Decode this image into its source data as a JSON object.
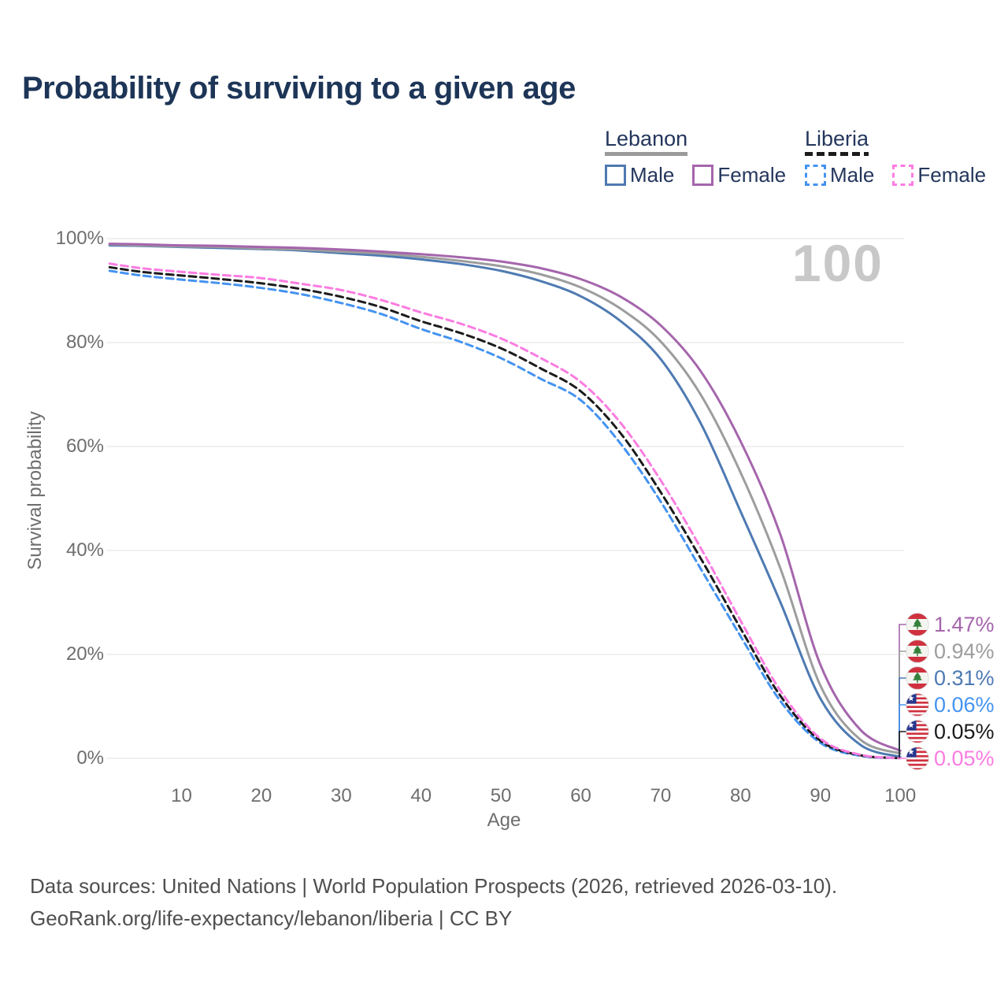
{
  "title": "Probability of surviving to a given age",
  "watermark": "100",
  "legend": {
    "groups": [
      {
        "country": "Lebanon",
        "line_style": "solid",
        "line_color": "#9b9b9b",
        "items": [
          {
            "label": "Male",
            "color": "#4e7ab2",
            "dash": false
          },
          {
            "label": "Female",
            "color": "#a565ac",
            "dash": false
          }
        ]
      },
      {
        "country": "Liberia",
        "line_style": "dashed",
        "line_color": "#1b1b1b",
        "items": [
          {
            "label": "Male",
            "color": "#4493f0",
            "dash": true
          },
          {
            "label": "Female",
            "color": "#fb7ce1",
            "dash": true
          }
        ]
      }
    ]
  },
  "axis": {
    "ylabel": "Survival probability",
    "xlabel": "Age",
    "y_ticks": [
      {
        "label": "100%",
        "value": 100
      },
      {
        "label": "80%",
        "value": 80
      },
      {
        "label": "60%",
        "value": 60
      },
      {
        "label": "40%",
        "value": 40
      },
      {
        "label": "20%",
        "value": 20
      },
      {
        "label": "0%",
        "value": 0
      }
    ],
    "x_ticks": [
      {
        "label": "10",
        "value": 10
      },
      {
        "label": "20",
        "value": 20
      },
      {
        "label": "30",
        "value": 30
      },
      {
        "label": "40",
        "value": 40
      },
      {
        "label": "50",
        "value": 50
      },
      {
        "label": "60",
        "value": 60
      },
      {
        "label": "70",
        "value": 70
      },
      {
        "label": "80",
        "value": 80
      },
      {
        "label": "90",
        "value": 90
      },
      {
        "label": "100",
        "value": 100
      }
    ]
  },
  "chart_data": {
    "type": "line",
    "title": "Probability of surviving to a given age",
    "xlabel": "Age",
    "ylabel": "Survival probability",
    "x_range": [
      1,
      100
    ],
    "y_range_percent": [
      0,
      100
    ],
    "grid": "horizontal, 20% steps",
    "legend_position": "top-right",
    "ages": [
      1,
      5,
      10,
      15,
      20,
      25,
      30,
      35,
      40,
      45,
      50,
      55,
      60,
      65,
      70,
      75,
      80,
      85,
      90,
      95,
      100
    ],
    "series": [
      {
        "name": "Lebanon Female",
        "country": "Lebanon",
        "sex": "Female",
        "style": "solid",
        "color": "#a565ac",
        "flag": "lebanon",
        "end_label": "1.47%",
        "values": [
          99.0,
          98.9,
          98.7,
          98.6,
          98.4,
          98.2,
          97.9,
          97.5,
          97.0,
          96.4,
          95.6,
          94.3,
          92.2,
          88.8,
          83.3,
          74.5,
          61.0,
          43.0,
          18.0,
          5.5,
          1.47
        ]
      },
      {
        "name": "Lebanon Both sexes",
        "country": "Lebanon",
        "sex": "Both",
        "style": "solid",
        "color": "#9d9d9d",
        "flag": "lebanon",
        "end_label": "0.94%",
        "values": [
          98.9,
          98.7,
          98.5,
          98.4,
          98.1,
          97.9,
          97.5,
          97.1,
          96.5,
          95.7,
          94.7,
          93.1,
          90.6,
          86.5,
          80.2,
          70.0,
          55.0,
          36.5,
          14.0,
          3.6,
          0.94
        ]
      },
      {
        "name": "Lebanon Male",
        "country": "Lebanon",
        "sex": "Male",
        "style": "solid",
        "color": "#4e7ab2",
        "flag": "lebanon",
        "end_label": "0.31%",
        "values": [
          98.7,
          98.6,
          98.4,
          98.2,
          98.0,
          97.7,
          97.2,
          96.7,
          96.0,
          95.1,
          93.8,
          91.8,
          88.9,
          84.1,
          76.8,
          64.5,
          47.5,
          30.0,
          11.5,
          2.6,
          0.31
        ]
      },
      {
        "name": "Liberia Male",
        "country": "Liberia",
        "sex": "Male",
        "style": "dashed",
        "color": "#4493f0",
        "flag": "liberia",
        "end_label": "0.06%",
        "values": [
          93.8,
          92.9,
          92.1,
          91.4,
          90.5,
          89.3,
          87.6,
          85.5,
          82.6,
          80.1,
          77.0,
          73.0,
          68.9,
          60.5,
          49.4,
          36.5,
          23.5,
          11.0,
          3.0,
          0.5,
          0.06
        ]
      },
      {
        "name": "Liberia Both sexes",
        "country": "Liberia",
        "sex": "Both",
        "style": "dashed",
        "color": "#1b1b1b",
        "flag": "liberia",
        "end_label": "0.05%",
        "values": [
          94.5,
          93.6,
          92.9,
          92.2,
          91.4,
          90.3,
          88.8,
          86.8,
          84.1,
          81.8,
          78.9,
          75.0,
          70.6,
          62.5,
          51.2,
          38.5,
          25.0,
          12.0,
          3.4,
          0.6,
          0.05
        ]
      },
      {
        "name": "Liberia Female",
        "country": "Liberia",
        "sex": "Female",
        "style": "dashed",
        "color": "#fb7ce1",
        "flag": "liberia",
        "end_label": "0.05%",
        "values": [
          95.2,
          94.3,
          93.6,
          93.0,
          92.4,
          91.3,
          90.1,
          88.2,
          85.8,
          83.6,
          80.8,
          77.0,
          72.4,
          64.5,
          53.5,
          40.5,
          26.5,
          13.0,
          3.8,
          0.7,
          0.05
        ]
      }
    ]
  },
  "footer": {
    "line1": "Data sources: United Nations | World Population Prospects (2026, retrieved 2026-03-10).",
    "line2": "GeoRank.org/life-expectancy/lebanon/liberia | CC BY"
  }
}
